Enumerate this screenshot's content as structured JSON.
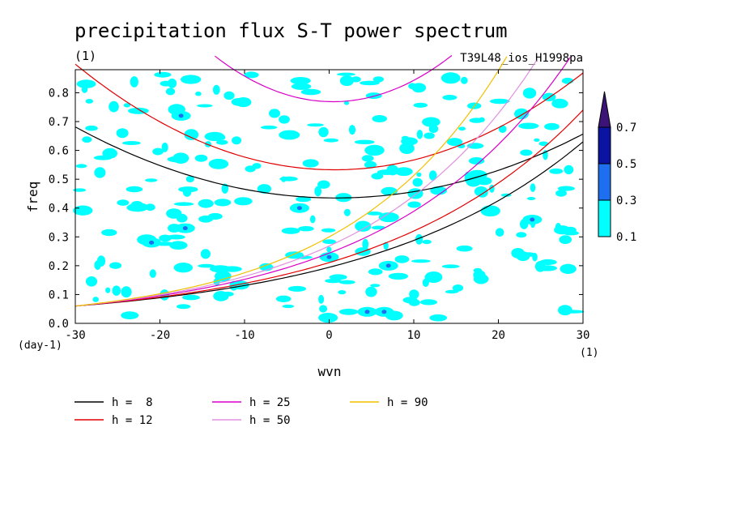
{
  "chart_data": {
    "type": "contour",
    "title": "precipitation flux S-T power spectrum",
    "units": "(1)",
    "run_id": "T39L48_ios_H1998pa",
    "xlabel": "wvn",
    "ylabel": "freq",
    "x_unit": "(1)",
    "y_unit": "(day-1)",
    "xlim": [
      -30,
      30
    ],
    "ylim": [
      0,
      0.88
    ],
    "xticks": [
      "-30",
      "-20",
      "-10",
      "0",
      "10",
      "20",
      "30"
    ],
    "yticks": [
      "0.0",
      "0.1",
      "0.2",
      "0.3",
      "0.4",
      "0.5",
      "0.6",
      "0.7",
      "0.8"
    ],
    "colorbar": {
      "levels": [
        "0.1",
        "0.3",
        "0.5",
        "0.7"
      ],
      "colors": [
        "#00ffff",
        "#1e6ef0",
        "#0a14a0",
        "#3c1478"
      ]
    },
    "dispersion_curves": [
      {
        "h_label": "h =  8",
        "h": 8,
        "color": "#000000"
      },
      {
        "h_label": "h = 12",
        "h": 12,
        "color": "#e00000"
      },
      {
        "h_label": "h = 25",
        "h": 25,
        "color": "#d800c8"
      },
      {
        "h_label": "h = 50",
        "h": 50,
        "color": "#e090e0"
      },
      {
        "h_label": "h = 90",
        "h": 90,
        "color": "#f0c000"
      }
    ]
  }
}
